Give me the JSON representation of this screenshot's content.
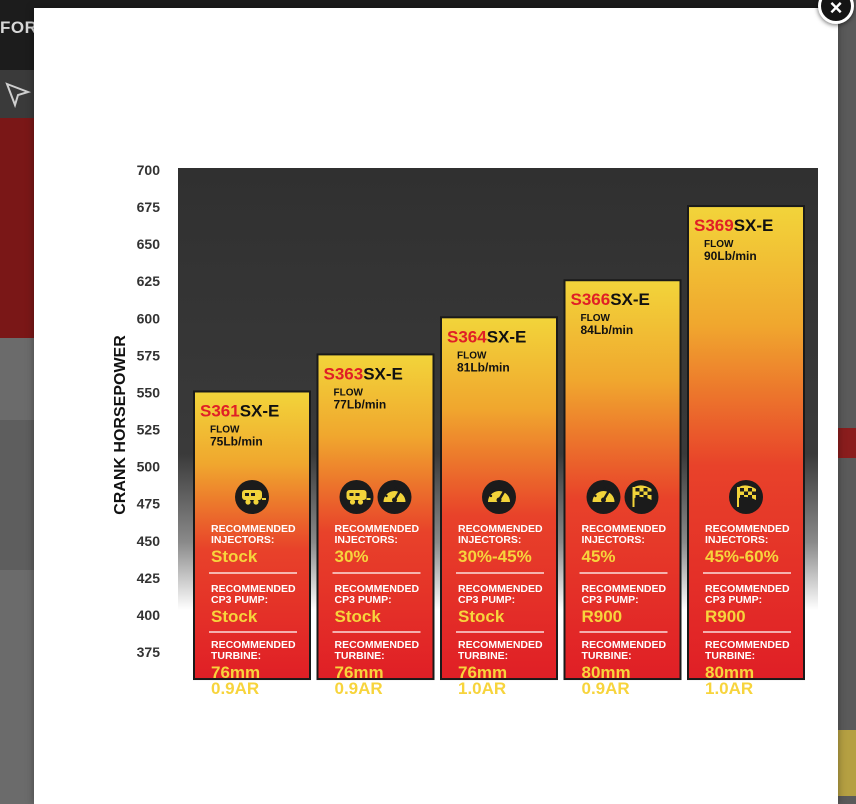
{
  "background": {
    "brand": "FORD"
  },
  "modal": {
    "close_label": "×"
  },
  "chart_data": {
    "type": "bar",
    "ylabel": "CRANK HORSEPOWER",
    "xlabel": "",
    "ylim": [
      375,
      700
    ],
    "yticks": [
      700,
      675,
      650,
      625,
      600,
      575,
      550,
      525,
      500,
      475,
      450,
      425,
      400,
      375
    ],
    "categories": [
      "S361SX-E",
      "S363SX-E",
      "S364SX-E",
      "S366SX-E",
      "S369SX-E"
    ],
    "values": [
      550,
      575,
      600,
      625,
      675
    ],
    "bars": [
      {
        "model_prefix": "S361",
        "model_suffix": "SX-E",
        "flow_label": "FLOW",
        "flow": "75Lb/min",
        "icons": [
          "trailer-icon"
        ],
        "injectors_label": [
          "RECOMMENDED",
          "INJECTORS:"
        ],
        "injectors": "Stock",
        "pump_label": [
          "RECOMMENDED",
          "CP3 PUMP:"
        ],
        "pump": "Stock",
        "turbine_label": [
          "RECOMMENDED",
          "TURBINE:"
        ],
        "turbine": [
          "76mm",
          "0.9AR"
        ]
      },
      {
        "model_prefix": "S363",
        "model_suffix": "SX-E",
        "flow_label": "FLOW",
        "flow": "77Lb/min",
        "icons": [
          "trailer-icon",
          "speedometer-icon"
        ],
        "injectors_label": [
          "RECOMMENDED",
          "INJECTORS:"
        ],
        "injectors": "30%",
        "pump_label": [
          "RECOMMENDED",
          "CP3 PUMP:"
        ],
        "pump": "Stock",
        "turbine_label": [
          "RECOMMENDED",
          "TURBINE:"
        ],
        "turbine": [
          "76mm",
          "0.9AR"
        ]
      },
      {
        "model_prefix": "S364",
        "model_suffix": "SX-E",
        "flow_label": "FLOW",
        "flow": "81Lb/min",
        "icons": [
          "speedometer-icon"
        ],
        "injectors_label": [
          "RECOMMENDED",
          "INJECTORS:"
        ],
        "injectors": "30%-45%",
        "pump_label": [
          "RECOMMENDED",
          "CP3 PUMP:"
        ],
        "pump": "Stock",
        "turbine_label": [
          "RECOMMENDED",
          "TURBINE:"
        ],
        "turbine": [
          "76mm",
          "1.0AR"
        ]
      },
      {
        "model_prefix": "S366",
        "model_suffix": "SX-E",
        "flow_label": "FLOW",
        "flow": "84Lb/min",
        "icons": [
          "speedometer-icon",
          "race-flag-icon"
        ],
        "injectors_label": [
          "RECOMMENDED",
          "INJECTORS:"
        ],
        "injectors": "45%",
        "pump_label": [
          "RECOMMENDED",
          "CP3 PUMP:"
        ],
        "pump": "R900",
        "turbine_label": [
          "RECOMMENDED",
          "TURBINE:"
        ],
        "turbine": [
          "80mm",
          "0.9AR"
        ]
      },
      {
        "model_prefix": "S369",
        "model_suffix": "SX-E",
        "flow_label": "FLOW",
        "flow": "90Lb/min",
        "icons": [
          "race-flag-icon"
        ],
        "injectors_label": [
          "RECOMMENDED",
          "INJECTORS:"
        ],
        "injectors": "45%-60%",
        "pump_label": [
          "RECOMMENDED",
          "CP3 PUMP:"
        ],
        "pump": "R900",
        "turbine_label": [
          "RECOMMENDED",
          "TURBINE:"
        ],
        "turbine": [
          "80mm",
          "1.0AR"
        ]
      }
    ],
    "colors": {
      "plot_bg": "#333333",
      "bar_top": "#f2d43a",
      "bar_bottom": "#e01f26",
      "accent_text": "#e01f26",
      "value_text": "#f7d43c",
      "label_text": "#ffffff"
    },
    "grid": false,
    "legend": "none"
  }
}
